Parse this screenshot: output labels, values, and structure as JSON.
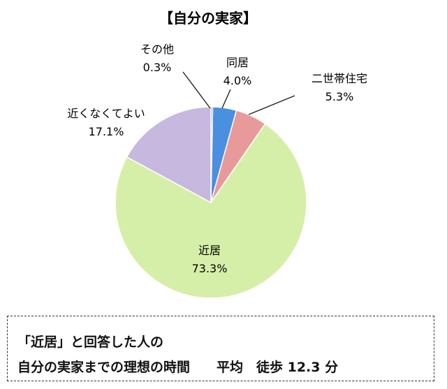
{
  "chart_data": {
    "type": "pie",
    "title": "【自分の実家】",
    "slices": [
      {
        "label": "その他",
        "value": 0.3,
        "value_text": "0.3%",
        "color": "#6f7fa8"
      },
      {
        "label": "同居",
        "value": 4.0,
        "value_text": "4.0%",
        "color": "#4a8fe0"
      },
      {
        "label": "二世帯住宅",
        "value": 5.3,
        "value_text": "5.3%",
        "color": "#e89a9a"
      },
      {
        "label": "近居",
        "value": 73.3,
        "value_text": "73.3%",
        "color": "#d6efa8"
      },
      {
        "label": "近くなくてよい",
        "value": 17.1,
        "value_text": "17.1%",
        "color": "#c7b8e0"
      }
    ]
  },
  "note": {
    "line1": "「近居」と回答した人の",
    "line2": "自分の実家までの理想の時間　　平均　徒歩 12.3 分"
  }
}
